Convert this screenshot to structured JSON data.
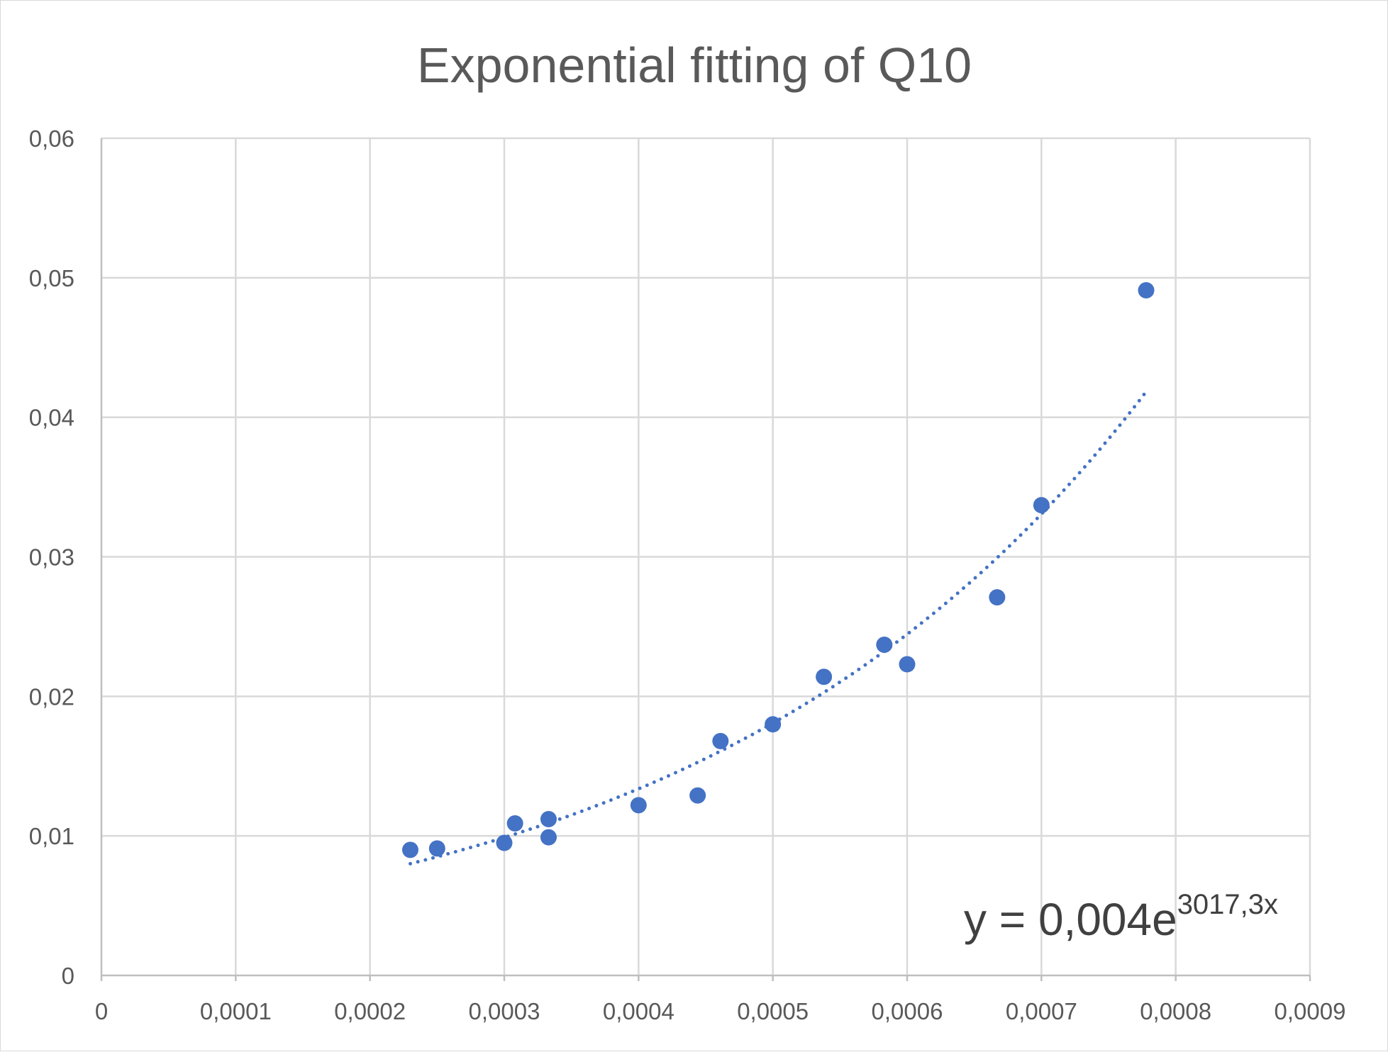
{
  "chart_data": {
    "type": "scatter",
    "title": "Exponential fitting of Q10",
    "xlabel": "",
    "ylabel": "",
    "xlim": [
      0,
      0.0009
    ],
    "ylim": [
      0,
      0.06
    ],
    "x_ticks": [
      0,
      0.0001,
      0.0002,
      0.0003,
      0.0004,
      0.0005,
      0.0006,
      0.0007,
      0.0008,
      0.0009
    ],
    "x_tick_labels": [
      "0",
      "0,0001",
      "0,0002",
      "0,0003",
      "0,0004",
      "0,0005",
      "0,0006",
      "0,0007",
      "0,0008",
      "0,0009"
    ],
    "y_ticks": [
      0,
      0.01,
      0.02,
      0.03,
      0.04,
      0.05,
      0.06
    ],
    "y_tick_labels": [
      "0",
      "0,01",
      "0,02",
      "0,03",
      "0,04",
      "0,05",
      "0,06"
    ],
    "grid": true,
    "legend": "none",
    "point_color": "#4472c4",
    "series": [
      {
        "x": [
          0.00023,
          0.00025,
          0.0003,
          0.000308,
          0.000333,
          0.000333,
          0.0004,
          0.000444,
          0.000461,
          0.0005,
          0.000538,
          0.000583,
          0.0006,
          0.000667,
          0.0007,
          0.000778
        ],
        "y": [
          0.009,
          0.0091,
          0.0095,
          0.0109,
          0.0112,
          0.0099,
          0.0122,
          0.0129,
          0.0168,
          0.018,
          0.0214,
          0.0237,
          0.0223,
          0.0271,
          0.0337,
          0.0491
        ]
      }
    ],
    "trendline": {
      "type": "exponential",
      "a": 0.004,
      "b": 3017.3,
      "x_range": [
        0.00023,
        0.000778
      ],
      "style": "dotted",
      "color": "#4472c4",
      "equation_main": "y = 0,004e",
      "equation_exponent": "3017,3x"
    }
  }
}
